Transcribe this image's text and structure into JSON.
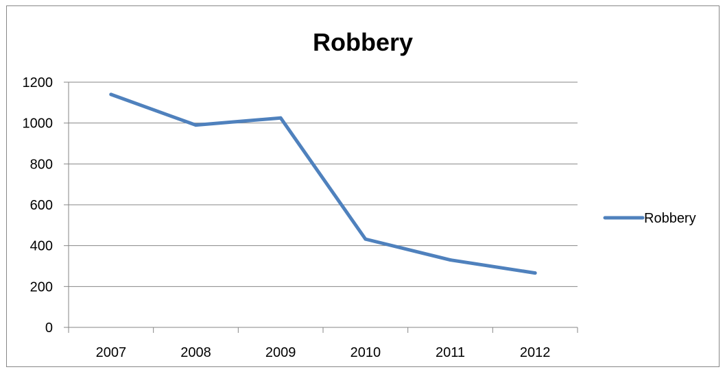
{
  "chart_data": {
    "type": "line",
    "title": "Robbery",
    "xlabel": "",
    "ylabel": "",
    "categories": [
      "2007",
      "2008",
      "2009",
      "2010",
      "2011",
      "2012"
    ],
    "series": [
      {
        "name": "Robbery",
        "values": [
          1140,
          990,
          1025,
          432,
          330,
          266
        ],
        "color": "#4F81BD"
      }
    ],
    "ylim": [
      0,
      1200
    ],
    "yticks": [
      0,
      200,
      400,
      600,
      800,
      1000,
      1200
    ],
    "ytick_labels": [
      "0",
      "200",
      "400",
      "600",
      "800",
      "1000",
      "1200"
    ],
    "grid": true,
    "legend": "right"
  }
}
